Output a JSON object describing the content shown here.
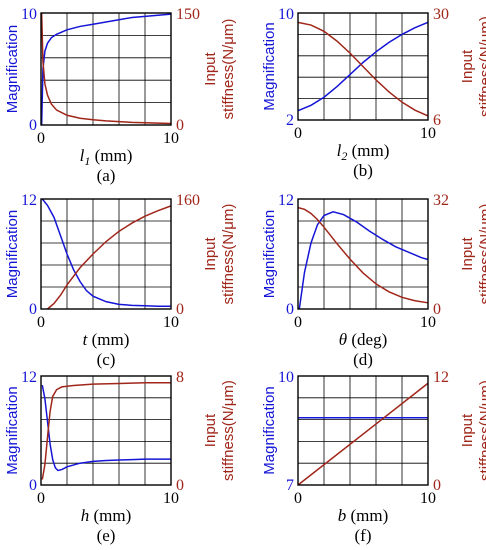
{
  "colors": {
    "magnification": "#1515d6",
    "stiffness": "#a0261a",
    "axis": "#000000"
  },
  "chart_data": [
    {
      "id": "a",
      "type": "line",
      "caption": "(a)",
      "xlabel_var": "l",
      "xlabel_sub": "1",
      "xlabel_unit": " (mm)",
      "var_italic": true,
      "xlim": [
        0,
        10
      ],
      "xticks": [
        "0",
        "10"
      ],
      "ylabel_left": "Magnification",
      "ylim_left": [
        0,
        10
      ],
      "yticks_left": [
        "0",
        "10"
      ],
      "ylabel_right_1": "Input",
      "ylabel_right_2": "stiffness(N/μm)",
      "ylim_right": [
        0,
        150
      ],
      "yticks_right": [
        "0",
        "150"
      ],
      "series": [
        {
          "axis": "left",
          "color": "magnification",
          "points": [
            [
              0.05,
              0
            ],
            [
              0.15,
              5.0
            ],
            [
              0.3,
              6.6
            ],
            [
              0.5,
              7.3
            ],
            [
              0.8,
              7.8
            ],
            [
              1.2,
              8.1
            ],
            [
              2,
              8.5
            ],
            [
              3,
              8.8
            ],
            [
              4,
              9.0
            ],
            [
              5,
              9.2
            ],
            [
              6,
              9.4
            ],
            [
              7,
              9.6
            ],
            [
              8,
              9.7
            ],
            [
              9,
              9.8
            ],
            [
              10,
              9.9
            ]
          ]
        },
        {
          "axis": "right",
          "color": "stiffness",
          "points": [
            [
              0.05,
              150
            ],
            [
              0.15,
              85
            ],
            [
              0.3,
              55
            ],
            [
              0.5,
              40
            ],
            [
              0.8,
              28
            ],
            [
              1.2,
              20
            ],
            [
              2,
              13
            ],
            [
              3,
              9
            ],
            [
              4,
              7
            ],
            [
              5,
              5.5
            ],
            [
              6,
              4.5
            ],
            [
              7,
              3.5
            ],
            [
              8,
              3
            ],
            [
              9,
              2.5
            ],
            [
              10,
              2
            ]
          ]
        }
      ]
    },
    {
      "id": "b",
      "type": "line",
      "caption": "(b)",
      "xlabel_var": "l",
      "xlabel_sub": "2",
      "xlabel_unit": " (mm)",
      "var_italic": true,
      "xlim": [
        0,
        10
      ],
      "xticks": [
        "0",
        "10"
      ],
      "ylabel_left": "Magnification",
      "ylim_left": [
        2,
        10
      ],
      "yticks_left": [
        "2",
        "10"
      ],
      "ylabel_right_1": "Input",
      "ylabel_right_2": "stiffness(N/μm)",
      "ylim_right": [
        6,
        30
      ],
      "yticks_right": [
        "6",
        "30"
      ],
      "series": [
        {
          "axis": "left",
          "color": "magnification",
          "points": [
            [
              0,
              2.7
            ],
            [
              1,
              3.1
            ],
            [
              2,
              3.7
            ],
            [
              3,
              4.5
            ],
            [
              4,
              5.4
            ],
            [
              5,
              6.3
            ],
            [
              6,
              7.1
            ],
            [
              7,
              7.8
            ],
            [
              8,
              8.4
            ],
            [
              9,
              8.9
            ],
            [
              10,
              9.3
            ]
          ]
        },
        {
          "axis": "right",
          "color": "stiffness",
          "points": [
            [
              0,
              27.9
            ],
            [
              1,
              27.3
            ],
            [
              2,
              25.9
            ],
            [
              3,
              23.7
            ],
            [
              4,
              21.0
            ],
            [
              5,
              18.0
            ],
            [
              6,
              15.0
            ],
            [
              7,
              12.3
            ],
            [
              8,
              10.0
            ],
            [
              9,
              8.2
            ],
            [
              10,
              6.9
            ]
          ]
        }
      ]
    },
    {
      "id": "c",
      "type": "line",
      "caption": "(c)",
      "xlabel_var": "t",
      "xlabel_sub": "",
      "xlabel_unit": " (mm)",
      "var_italic": true,
      "xlim": [
        0,
        10
      ],
      "xticks": [
        "0",
        "10"
      ],
      "ylabel_left": "Magnification",
      "ylim_left": [
        0,
        12
      ],
      "yticks_left": [
        "0",
        "12"
      ],
      "ylabel_right_1": "Input",
      "ylabel_right_2": "stiffness(N/μm)",
      "ylim_right": [
        0,
        160
      ],
      "yticks_right": [
        "0",
        "160"
      ],
      "series": [
        {
          "axis": "left",
          "color": "magnification",
          "points": [
            [
              0.1,
              12
            ],
            [
              0.5,
              11.3
            ],
            [
              1,
              10
            ],
            [
              1.5,
              8
            ],
            [
              2,
              6
            ],
            [
              2.5,
              4.3
            ],
            [
              3,
              3
            ],
            [
              3.5,
              2
            ],
            [
              4,
              1.4
            ],
            [
              5,
              0.8
            ],
            [
              6,
              0.5
            ],
            [
              7,
              0.4
            ],
            [
              8,
              0.35
            ],
            [
              9,
              0.3
            ],
            [
              10,
              0.3
            ]
          ]
        },
        {
          "axis": "right",
          "color": "stiffness",
          "points": [
            [
              0.5,
              0
            ],
            [
              1,
              8
            ],
            [
              1.5,
              20
            ],
            [
              2,
              35
            ],
            [
              3,
              60
            ],
            [
              4,
              80
            ],
            [
              5,
              98
            ],
            [
              6,
              113
            ],
            [
              7,
              125
            ],
            [
              8,
              135
            ],
            [
              9,
              143
            ],
            [
              10,
              150
            ]
          ]
        }
      ]
    },
    {
      "id": "d",
      "type": "line",
      "caption": "(d)",
      "xlabel_var": "θ",
      "xlabel_sub": "",
      "xlabel_unit": " (deg)",
      "var_italic": true,
      "xlim": [
        0,
        10
      ],
      "xticks": [
        "0",
        "10"
      ],
      "ylabel_left": "Magnification",
      "ylim_left": [
        0,
        12
      ],
      "yticks_left": [
        "0",
        "12"
      ],
      "ylabel_right_1": "Input",
      "ylabel_right_2": "stiffness(N/μm)",
      "ylim_right": [
        0,
        32
      ],
      "yticks_right": [
        "0",
        "32"
      ],
      "series": [
        {
          "axis": "left",
          "color": "magnification",
          "points": [
            [
              0.1,
              0
            ],
            [
              0.5,
              4
            ],
            [
              1,
              7.2
            ],
            [
              1.5,
              9.2
            ],
            [
              2,
              10.2
            ],
            [
              2.7,
              10.6
            ],
            [
              3.5,
              10.3
            ],
            [
              4.5,
              9.5
            ],
            [
              5.5,
              8.5
            ],
            [
              6.5,
              7.6
            ],
            [
              7.5,
              6.8
            ],
            [
              8.5,
              6.2
            ],
            [
              9.5,
              5.6
            ],
            [
              10,
              5.4
            ]
          ]
        },
        {
          "axis": "right",
          "color": "stiffness",
          "points": [
            [
              0,
              29.5
            ],
            [
              0.5,
              29
            ],
            [
              1,
              27.8
            ],
            [
              1.5,
              26
            ],
            [
              2,
              23.8
            ],
            [
              3,
              19
            ],
            [
              4,
              14.5
            ],
            [
              5,
              10.5
            ],
            [
              6,
              7.3
            ],
            [
              7,
              5
            ],
            [
              8,
              3.4
            ],
            [
              9,
              2.4
            ],
            [
              10,
              1.8
            ]
          ]
        }
      ]
    },
    {
      "id": "e",
      "type": "line",
      "caption": "(e)",
      "xlabel_var": "h",
      "xlabel_sub": "",
      "xlabel_unit": " (mm)",
      "var_italic": true,
      "xlim": [
        0,
        10
      ],
      "xticks": [
        "0",
        "10"
      ],
      "ylabel_left": "Magnification",
      "ylim_left": [
        0,
        12
      ],
      "yticks_left": [
        "0",
        "12"
      ],
      "ylabel_right_1": "Input",
      "ylabel_right_2": "stiffness(N/μm)",
      "ylim_right": [
        0,
        8
      ],
      "yticks_right": [
        "0",
        "8"
      ],
      "series": [
        {
          "axis": "left",
          "color": "magnification",
          "points": [
            [
              0.1,
              11
            ],
            [
              0.3,
              9.5
            ],
            [
              0.5,
              7
            ],
            [
              0.7,
              4.5
            ],
            [
              0.9,
              2.8
            ],
            [
              1.1,
              1.9
            ],
            [
              1.3,
              1.6
            ],
            [
              1.6,
              1.7
            ],
            [
              2,
              2
            ],
            [
              3,
              2.4
            ],
            [
              4,
              2.6
            ],
            [
              5,
              2.7
            ],
            [
              6,
              2.75
            ],
            [
              7,
              2.8
            ],
            [
              8,
              2.85
            ],
            [
              9,
              2.85
            ],
            [
              10,
              2.85
            ]
          ]
        },
        {
          "axis": "right",
          "color": "stiffness",
          "points": [
            [
              0.1,
              0.4
            ],
            [
              0.3,
              1.5
            ],
            [
              0.5,
              3.5
            ],
            [
              0.7,
              5.4
            ],
            [
              0.9,
              6.5
            ],
            [
              1.2,
              7.0
            ],
            [
              1.6,
              7.2
            ],
            [
              2.5,
              7.3
            ],
            [
              4,
              7.4
            ],
            [
              6,
              7.45
            ],
            [
              8,
              7.5
            ],
            [
              10,
              7.5
            ]
          ]
        }
      ]
    },
    {
      "id": "f",
      "type": "line",
      "caption": "(f)",
      "xlabel_var": "b",
      "xlabel_sub": "",
      "xlabel_unit": " (mm)",
      "var_italic": true,
      "xlim": [
        0,
        10
      ],
      "xticks": [
        "0",
        "10"
      ],
      "ylabel_left": "Magnification",
      "ylim_left": [
        7,
        10
      ],
      "yticks_left": [
        "7",
        "10"
      ],
      "ylabel_right_1": "Input",
      "ylabel_right_2": "stiffness(N/μm)",
      "ylim_right": [
        0,
        12
      ],
      "yticks_right": [
        "0",
        "12"
      ],
      "series": [
        {
          "axis": "left",
          "color": "magnification",
          "points": [
            [
              0,
              8.85
            ],
            [
              10,
              8.85
            ]
          ]
        },
        {
          "axis": "right",
          "color": "stiffness",
          "points": [
            [
              0,
              0
            ],
            [
              10,
              11.2
            ]
          ]
        }
      ]
    }
  ]
}
